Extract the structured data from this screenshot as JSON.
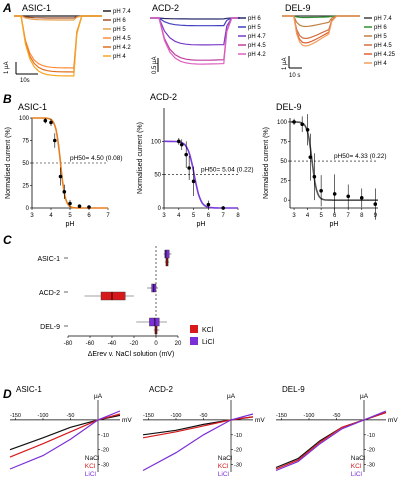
{
  "panels": {
    "A": "A",
    "B": "B",
    "C": "C",
    "D": "D"
  },
  "colors": {
    "asic_traces": [
      "#222222",
      "#a0522d",
      "#e8a050",
      "#ff8c3a",
      "#e07020",
      "#f5a623"
    ],
    "acd_traces": [
      "#2a2a6a",
      "#4040c0",
      "#7a3ac8",
      "#c040a0",
      "#e060c0"
    ],
    "del_traces": [
      "#404040",
      "#2f8f2f",
      "#c08040",
      "#d07040",
      "#e06030",
      "#f0a060"
    ],
    "asic_fit": "#e87d1e",
    "acd_fit": "#7a3ad8",
    "del_fit": "#555555",
    "kcl": "#d7191c",
    "licl": "#7b2fd6",
    "nacl": "#111111"
  },
  "A": {
    "asic": {
      "title": "ASIC-1",
      "legend": [
        "pH 7.4",
        "pH 6",
        "pH 5",
        "pH 4.5",
        "pH 4.2",
        "pH 4"
      ],
      "scale_y": "1 µA",
      "scale_x": "10s"
    },
    "acd": {
      "title": "ACD-2",
      "legend": [
        "pH 6",
        "pH 5",
        "pH 4.7",
        "pH 4.5",
        "pH 4.2"
      ],
      "scale_y": "0.5 µA"
    },
    "del": {
      "title": "DEL-9",
      "legend": [
        "pH 7.4",
        "pH 6",
        "pH 5",
        "pH 4.5",
        "pH 4.25",
        "pH 4"
      ],
      "scale_y": "1 µA",
      "scale_x": "10 s"
    }
  },
  "chart_data": [
    {
      "type": "scatter",
      "panel": "B-ASIC-1",
      "title": "ASIC-1",
      "xlabel": "pH",
      "ylabel": "Normalised current (%)",
      "xlim": [
        3,
        7
      ],
      "ylim": [
        0,
        100
      ],
      "xticks": [
        3,
        4,
        5,
        6,
        7
      ],
      "yticks": [
        0,
        25,
        50,
        75,
        100
      ],
      "x": [
        3.7,
        4.0,
        4.2,
        4.5,
        4.7,
        5.0,
        5.5,
        6.0
      ],
      "y": [
        97,
        95,
        75,
        35,
        18,
        5,
        2,
        1
      ],
      "err": [
        3,
        4,
        8,
        10,
        8,
        4,
        2,
        1
      ],
      "annotation": "pH50= 4.50 (0.08)"
    },
    {
      "type": "scatter",
      "panel": "B-ACD-2",
      "title": "ACD-2",
      "xlabel": "pH",
      "ylabel": "Normalised current (%)",
      "xlim": [
        3,
        8
      ],
      "ylim": [
        0,
        150
      ],
      "xticks": [
        3,
        4,
        5,
        6,
        7,
        8
      ],
      "yticks": [
        0,
        50,
        100
      ],
      "x": [
        4.0,
        4.2,
        4.5,
        4.7,
        5.0,
        6.0,
        7.0
      ],
      "y": [
        100,
        95,
        80,
        60,
        40,
        5,
        0
      ],
      "err": [
        5,
        8,
        20,
        18,
        22,
        6,
        3
      ],
      "annotation": "pH50= 5.04 (0.22)"
    },
    {
      "type": "scatter",
      "panel": "B-DEL-9",
      "title": "DEL-9",
      "xlabel": "pH",
      "ylabel": "Normalised current (%)",
      "xticks": [
        3,
        4,
        5,
        6,
        7,
        8,
        9
      ],
      "xtick_labels": [
        "3",
        "4",
        "5",
        "6",
        "7",
        "8",
        "9"
      ],
      "yticks": [
        0,
        25,
        50,
        75,
        100
      ],
      "xlim": [
        2.7,
        9.2
      ],
      "ylim": [
        -10,
        105
      ],
      "x": [
        3.0,
        3.6,
        4.0,
        4.2,
        4.5,
        5.0,
        6.0,
        7.0,
        8.0,
        9.0
      ],
      "y": [
        100,
        97,
        90,
        55,
        30,
        12,
        8,
        5,
        3,
        -5
      ],
      "err": [
        4,
        10,
        20,
        30,
        30,
        20,
        25,
        15,
        12,
        20
      ],
      "annotation": "pH50= 4.33 (0.22)"
    },
    {
      "type": "bar",
      "panel": "C",
      "xlabel": "ΔErev v. NaCl solution (mV)",
      "xlim": [
        -80,
        20
      ],
      "xticks": [
        -80,
        -60,
        -40,
        -20,
        0,
        20
      ],
      "categories": [
        "ASIC-1",
        "ACD-2",
        "DEL-9"
      ],
      "series": [
        {
          "name": "KCl",
          "boxes": [
            {
              "min": 8,
              "q1": 9,
              "med": 10,
              "q3": 11,
              "max": 12
            },
            {
              "min": -65,
              "q1": -50,
              "med": -40,
              "q3": -28,
              "max": -20
            },
            {
              "min": -2,
              "q1": -1,
              "med": 0,
              "q3": 1,
              "max": 3
            }
          ]
        },
        {
          "name": "LiCl",
          "boxes": [
            {
              "min": 7,
              "q1": 8,
              "med": 9,
              "q3": 12,
              "max": 14
            },
            {
              "min": -8,
              "q1": -4,
              "med": -2,
              "q3": 0,
              "max": 2
            },
            {
              "min": -18,
              "q1": -6,
              "med": -1,
              "q3": 3,
              "max": 10
            }
          ]
        }
      ],
      "legend": [
        "KCl",
        "LiCl"
      ]
    },
    {
      "type": "line",
      "panel": "D-ASIC-1",
      "title": "ASIC-1",
      "xlabel": "mV",
      "ylabel": "µA",
      "xticks": [
        -150,
        -100,
        -50
      ],
      "yticks": [
        -10,
        -20,
        -30
      ],
      "xlim": [
        -160,
        40
      ],
      "ylim": [
        -35,
        8
      ],
      "series": [
        {
          "name": "NaCl",
          "x": [
            -160,
            -100,
            -50,
            0,
            40
          ],
          "y": [
            -20,
            -12,
            -5,
            0,
            3
          ]
        },
        {
          "name": "KCl",
          "x": [
            -160,
            -100,
            -50,
            0,
            40
          ],
          "y": [
            -25,
            -16,
            -8,
            0,
            4
          ]
        },
        {
          "name": "LiCl",
          "x": [
            -160,
            -100,
            -50,
            0,
            40
          ],
          "y": [
            -33,
            -24,
            -13,
            0,
            6
          ]
        }
      ]
    },
    {
      "type": "line",
      "panel": "D-ACD-2",
      "title": "ACD-2",
      "xlabel": "mV",
      "ylabel": "µA",
      "xticks": [
        -150,
        -100,
        -50
      ],
      "yticks": [
        -10,
        -20,
        -30
      ],
      "xlim": [
        -160,
        40
      ],
      "ylim": [
        -35,
        8
      ],
      "series": [
        {
          "name": "NaCl",
          "x": [
            -160,
            -100,
            -50,
            0,
            40
          ],
          "y": [
            -10,
            -7,
            -3,
            0,
            2
          ]
        },
        {
          "name": "KCl",
          "x": [
            -160,
            -100,
            -50,
            0,
            40
          ],
          "y": [
            -12,
            -8,
            -4,
            0,
            2
          ]
        },
        {
          "name": "LiCl",
          "x": [
            -160,
            -100,
            -50,
            0,
            40
          ],
          "y": [
            -34,
            -22,
            -10,
            0,
            4
          ]
        }
      ]
    },
    {
      "type": "line",
      "panel": "D-DEL-9",
      "title": "DEL-9",
      "xlabel": "mV",
      "ylabel": "µA",
      "xticks": [
        -150,
        -100,
        -50
      ],
      "yticks": [
        -10,
        -20,
        -30
      ],
      "xlim": [
        -160,
        40
      ],
      "ylim": [
        -35,
        8
      ],
      "series": [
        {
          "name": "NaCl",
          "x": [
            -160,
            -120,
            -80,
            -40,
            0,
            40
          ],
          "y": [
            -32,
            -26,
            -14,
            -5,
            0,
            5
          ]
        },
        {
          "name": "KCl",
          "x": [
            -160,
            -120,
            -80,
            -40,
            0,
            40
          ],
          "y": [
            -33,
            -27,
            -15,
            -5,
            0,
            5
          ]
        },
        {
          "name": "LiCl",
          "x": [
            -160,
            -120,
            -80,
            -40,
            0,
            40
          ],
          "y": [
            -34,
            -28,
            -16,
            -6,
            0,
            6
          ]
        }
      ],
      "legend": [
        "NaCl",
        "KCl",
        "LiCl"
      ]
    }
  ]
}
